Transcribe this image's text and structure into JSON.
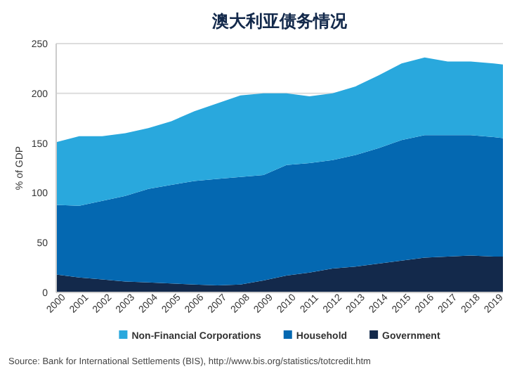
{
  "chart_data": {
    "type": "area",
    "title": "澳大利亚债务情况",
    "ylabel": "% of GDP",
    "stacked": true,
    "x": [
      2000,
      2001,
      2002,
      2003,
      2004,
      2005,
      2006,
      2007,
      2008,
      2009,
      2010,
      2011,
      2012,
      2013,
      2014,
      2015,
      2016,
      2017,
      2018,
      2019,
      2019.4
    ],
    "series": [
      {
        "name": "Government",
        "color": "#13294b",
        "values": [
          18,
          15,
          13,
          11,
          10,
          9,
          8,
          7,
          8,
          12,
          17,
          20,
          24,
          26,
          29,
          32,
          35,
          36,
          37,
          36,
          36
        ]
      },
      {
        "name": "Household",
        "color": "#0468b1",
        "values": [
          70,
          72,
          79,
          86,
          94,
          99,
          104,
          107,
          108,
          106,
          111,
          110,
          109,
          112,
          116,
          121,
          123,
          122,
          121,
          120,
          119
        ]
      },
      {
        "name": "Non-Financial Corporations",
        "color": "#29a8dd",
        "values": [
          63,
          70,
          65,
          63,
          61,
          64,
          70,
          76,
          82,
          82,
          72,
          67,
          67,
          69,
          73,
          77,
          78,
          74,
          74,
          74,
          74
        ]
      }
    ],
    "xlim": [
      2000,
      2019.4
    ],
    "xticks": [
      2000,
      2001,
      2002,
      2003,
      2004,
      2005,
      2006,
      2007,
      2008,
      2009,
      2010,
      2011,
      2012,
      2013,
      2014,
      2015,
      2016,
      2017,
      2018,
      2019
    ],
    "ylim": [
      0,
      250
    ],
    "yticks": [
      0,
      50,
      100,
      150,
      200,
      250
    ],
    "grid": "y",
    "legend": "bottom",
    "annotations": [
      "Source: Bank for International Settlements (BIS), http://www.bis.org/statistics/totcredit.htm"
    ]
  }
}
